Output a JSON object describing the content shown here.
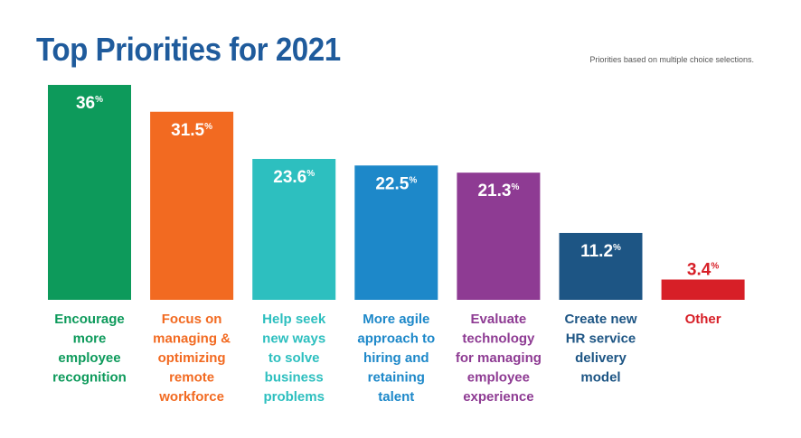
{
  "title": "Top Priorities for 2021",
  "note": "Priorities based on multiple choice selections.",
  "chart_data": {
    "type": "bar",
    "unit": "%",
    "ylim": [
      0,
      36
    ],
    "grid": false,
    "legend": "none",
    "categories": [
      "Encourage more employee recognition",
      "Focus on managing & optimizing remote workforce",
      "Help seek new ways to solve business problems",
      "More agile approach to hiring and retaining talent",
      "Evaluate technology for managing employee experience",
      "Create new HR service delivery model",
      "Other"
    ],
    "category_lines": [
      [
        "Encourage",
        "more",
        "employee",
        "recognition"
      ],
      [
        "Focus on",
        "managing &",
        "optimizing",
        "remote",
        "workforce"
      ],
      [
        "Help seek",
        "new ways",
        "to solve",
        "business",
        "problems"
      ],
      [
        "More agile",
        "approach to",
        "hiring and",
        "retaining",
        "talent"
      ],
      [
        "Evaluate",
        "technology",
        "for managing",
        "employee",
        "experience"
      ],
      [
        "Create new",
        "HR service",
        "delivery",
        "model"
      ],
      [
        "Other"
      ]
    ],
    "value_labels": [
      "36",
      "31.5",
      "23.6",
      "22.5",
      "21.3",
      "11.2",
      "3.4"
    ],
    "values": [
      36,
      31.5,
      23.6,
      22.5,
      21.3,
      11.2,
      3.4
    ],
    "colors": [
      "#0d9a5b",
      "#f26a21",
      "#2dbfbf",
      "#1d88c9",
      "#8e3b93",
      "#1d5584",
      "#d71f27"
    ]
  }
}
